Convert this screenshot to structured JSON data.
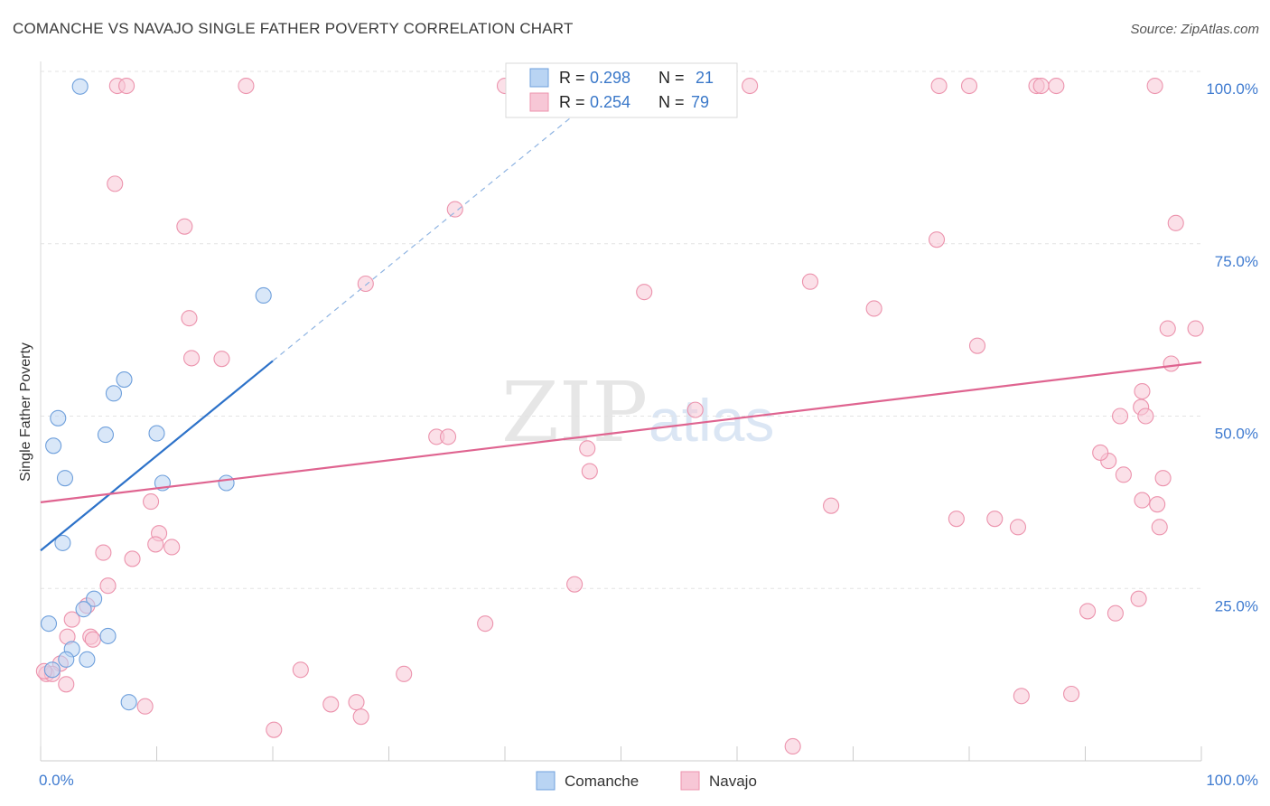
{
  "title": "COMANCHE VS NAVAJO SINGLE FATHER POVERTY CORRELATION CHART",
  "source": "Source: ZipAtlas.com",
  "watermark": {
    "zip": "ZIP",
    "atlas": "atlas"
  },
  "chart_data": {
    "type": "scatter",
    "xlabel": "",
    "ylabel": "Single Father Poverty",
    "xlim": [
      0,
      100
    ],
    "ylim": [
      0,
      100
    ],
    "x_tick_labels": [
      "0.0%",
      "100.0%"
    ],
    "y_ticks": [
      25,
      50,
      75,
      100
    ],
    "y_tick_labels": [
      "25.0%",
      "50.0%",
      "75.0%",
      "100.0%"
    ],
    "grid": true,
    "legend_position": "top-center",
    "series": [
      {
        "name": "Comanche",
        "color": "#6fa0dc",
        "fill": "#b9d4f3",
        "line_color": "#2d72c9",
        "R": "0.298",
        "N": "21",
        "trend": {
          "x0": 0,
          "y0": 30.5,
          "x1": 20,
          "y1": 58.0,
          "dash_to_x": 100
        },
        "points": [
          [
            3.4,
            97.8
          ],
          [
            19.2,
            67.5
          ],
          [
            7.2,
            55.3
          ],
          [
            6.3,
            53.3
          ],
          [
            1.5,
            49.7
          ],
          [
            5.6,
            47.3
          ],
          [
            10.0,
            47.5
          ],
          [
            1.1,
            45.7
          ],
          [
            2.1,
            41.0
          ],
          [
            10.5,
            40.3
          ],
          [
            16.0,
            40.3
          ],
          [
            1.9,
            31.6
          ],
          [
            4.6,
            23.5
          ],
          [
            3.7,
            22.0
          ],
          [
            0.7,
            19.9
          ],
          [
            5.8,
            18.1
          ],
          [
            2.7,
            16.2
          ],
          [
            2.2,
            14.7
          ],
          [
            4.0,
            14.7
          ],
          [
            1.0,
            13.2
          ],
          [
            7.6,
            8.5
          ]
        ]
      },
      {
        "name": "Navajo",
        "color": "#ec93ad",
        "fill": "#f7c7d6",
        "line_color": "#df6490",
        "R": "0.254",
        "N": "79",
        "trend": {
          "x0": 0,
          "y0": 37.5,
          "x1": 100,
          "y1": 57.8
        },
        "points": [
          [
            6.6,
            97.9
          ],
          [
            7.4,
            97.9
          ],
          [
            17.7,
            97.9
          ],
          [
            40.0,
            97.9
          ],
          [
            61.1,
            97.9
          ],
          [
            77.4,
            97.9
          ],
          [
            80.0,
            97.9
          ],
          [
            85.8,
            97.9
          ],
          [
            86.2,
            97.9
          ],
          [
            87.5,
            97.9
          ],
          [
            96.0,
            97.9
          ],
          [
            6.4,
            83.7
          ],
          [
            35.7,
            80.0
          ],
          [
            12.4,
            77.5
          ],
          [
            97.8,
            78.0
          ],
          [
            77.2,
            75.6
          ],
          [
            28.0,
            69.2
          ],
          [
            66.3,
            69.5
          ],
          [
            52.0,
            68.0
          ],
          [
            71.8,
            65.6
          ],
          [
            12.8,
            64.2
          ],
          [
            97.1,
            62.7
          ],
          [
            99.5,
            62.7
          ],
          [
            80.7,
            60.2
          ],
          [
            13.0,
            58.4
          ],
          [
            15.6,
            58.3
          ],
          [
            97.4,
            57.6
          ],
          [
            94.9,
            53.6
          ],
          [
            56.4,
            50.9
          ],
          [
            94.8,
            51.3
          ],
          [
            93.0,
            50.0
          ],
          [
            95.2,
            50.0
          ],
          [
            34.1,
            47.0
          ],
          [
            35.1,
            47.0
          ],
          [
            47.1,
            45.3
          ],
          [
            92.0,
            43.5
          ],
          [
            91.3,
            44.7
          ],
          [
            47.3,
            42.0
          ],
          [
            93.3,
            41.5
          ],
          [
            96.7,
            41.0
          ],
          [
            94.9,
            37.8
          ],
          [
            96.2,
            37.2
          ],
          [
            9.5,
            37.6
          ],
          [
            68.1,
            37.0
          ],
          [
            78.9,
            35.1
          ],
          [
            82.2,
            35.1
          ],
          [
            84.2,
            33.9
          ],
          [
            96.4,
            33.9
          ],
          [
            10.2,
            33.0
          ],
          [
            9.9,
            31.4
          ],
          [
            11.3,
            31.0
          ],
          [
            5.4,
            30.2
          ],
          [
            7.9,
            29.3
          ],
          [
            5.8,
            25.4
          ],
          [
            46.0,
            25.6
          ],
          [
            4.0,
            22.5
          ],
          [
            94.6,
            23.5
          ],
          [
            92.6,
            21.4
          ],
          [
            90.2,
            21.7
          ],
          [
            2.7,
            20.5
          ],
          [
            38.3,
            19.9
          ],
          [
            4.3,
            18.0
          ],
          [
            2.3,
            18.0
          ],
          [
            4.5,
            17.6
          ],
          [
            1.7,
            14.1
          ],
          [
            22.4,
            13.2
          ],
          [
            31.3,
            12.6
          ],
          [
            0.5,
            12.6
          ],
          [
            1.0,
            12.6
          ],
          [
            2.2,
            11.1
          ],
          [
            84.5,
            9.4
          ],
          [
            88.8,
            9.7
          ],
          [
            9.0,
            7.9
          ],
          [
            25.0,
            8.2
          ],
          [
            27.2,
            8.5
          ],
          [
            27.6,
            6.4
          ],
          [
            20.1,
            4.5
          ],
          [
            64.8,
            2.1
          ],
          [
            0.3,
            13.0
          ]
        ]
      }
    ]
  }
}
